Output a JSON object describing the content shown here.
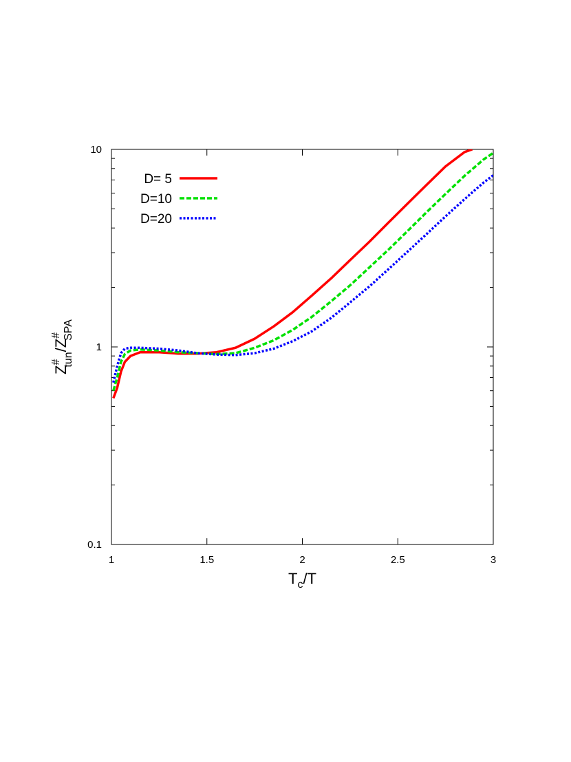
{
  "chart_data": {
    "type": "line",
    "xlabel": {
      "main": "T",
      "sub": "c",
      "tail": "/T"
    },
    "ylabel": {
      "z1": "Z",
      "sup1": "#",
      "sub1": "tun",
      "mid": "/Z",
      "sup2": "#",
      "sub2": "SPA"
    },
    "xlim": [
      1,
      3
    ],
    "ylim": [
      0.1,
      10
    ],
    "yscale": "log",
    "grid": false,
    "legend_position": "top-left",
    "x_ticks": [
      {
        "value": 1,
        "label": "1"
      },
      {
        "value": 1.5,
        "label": "1.5"
      },
      {
        "value": 2,
        "label": "2"
      },
      {
        "value": 2.5,
        "label": "2.5"
      },
      {
        "value": 3,
        "label": "3"
      }
    ],
    "y_ticks": [
      {
        "value": 0.1,
        "label": "0.1"
      },
      {
        "value": 1,
        "label": "1"
      },
      {
        "value": 10,
        "label": "10"
      }
    ],
    "series": [
      {
        "name": "D= 5",
        "color": "#ff0000",
        "dash": "solid",
        "points": [
          [
            1.01,
            0.55
          ],
          [
            1.03,
            0.62
          ],
          [
            1.05,
            0.75
          ],
          [
            1.07,
            0.84
          ],
          [
            1.1,
            0.9
          ],
          [
            1.15,
            0.94
          ],
          [
            1.25,
            0.94
          ],
          [
            1.35,
            0.925
          ],
          [
            1.45,
            0.925
          ],
          [
            1.55,
            0.94
          ],
          [
            1.65,
            0.99
          ],
          [
            1.75,
            1.1
          ],
          [
            1.85,
            1.27
          ],
          [
            1.95,
            1.5
          ],
          [
            2.05,
            1.82
          ],
          [
            2.15,
            2.22
          ],
          [
            2.25,
            2.75
          ],
          [
            2.35,
            3.4
          ],
          [
            2.45,
            4.25
          ],
          [
            2.55,
            5.3
          ],
          [
            2.65,
            6.6
          ],
          [
            2.75,
            8.2
          ],
          [
            2.85,
            9.7
          ],
          [
            2.89,
            10.0
          ]
        ]
      },
      {
        "name": "D=10",
        "color": "#00e000",
        "dash": "dashed",
        "points": [
          [
            1.01,
            0.6
          ],
          [
            1.03,
            0.7
          ],
          [
            1.05,
            0.84
          ],
          [
            1.07,
            0.92
          ],
          [
            1.1,
            0.96
          ],
          [
            1.15,
            0.97
          ],
          [
            1.25,
            0.96
          ],
          [
            1.35,
            0.94
          ],
          [
            1.45,
            0.93
          ],
          [
            1.55,
            0.92
          ],
          [
            1.65,
            0.93
          ],
          [
            1.75,
            0.99
          ],
          [
            1.85,
            1.08
          ],
          [
            1.95,
            1.22
          ],
          [
            2.05,
            1.42
          ],
          [
            2.15,
            1.7
          ],
          [
            2.25,
            2.05
          ],
          [
            2.35,
            2.52
          ],
          [
            2.45,
            3.1
          ],
          [
            2.55,
            3.85
          ],
          [
            2.65,
            4.8
          ],
          [
            2.75,
            5.95
          ],
          [
            2.85,
            7.35
          ],
          [
            2.95,
            8.9
          ],
          [
            3.0,
            9.6
          ]
        ]
      },
      {
        "name": "D=20",
        "color": "#0000ff",
        "dash": "dotted",
        "points": [
          [
            1.01,
            0.66
          ],
          [
            1.03,
            0.8
          ],
          [
            1.05,
            0.93
          ],
          [
            1.07,
            0.98
          ],
          [
            1.1,
            0.99
          ],
          [
            1.15,
            0.99
          ],
          [
            1.25,
            0.98
          ],
          [
            1.35,
            0.96
          ],
          [
            1.45,
            0.93
          ],
          [
            1.55,
            0.915
          ],
          [
            1.65,
            0.91
          ],
          [
            1.75,
            0.93
          ],
          [
            1.85,
            0.98
          ],
          [
            1.95,
            1.07
          ],
          [
            2.05,
            1.2
          ],
          [
            2.15,
            1.4
          ],
          [
            2.25,
            1.68
          ],
          [
            2.35,
            2.02
          ],
          [
            2.45,
            2.47
          ],
          [
            2.55,
            3.03
          ],
          [
            2.65,
            3.72
          ],
          [
            2.75,
            4.58
          ],
          [
            2.85,
            5.6
          ],
          [
            2.95,
            6.8
          ],
          [
            3.0,
            7.4
          ]
        ]
      }
    ]
  }
}
